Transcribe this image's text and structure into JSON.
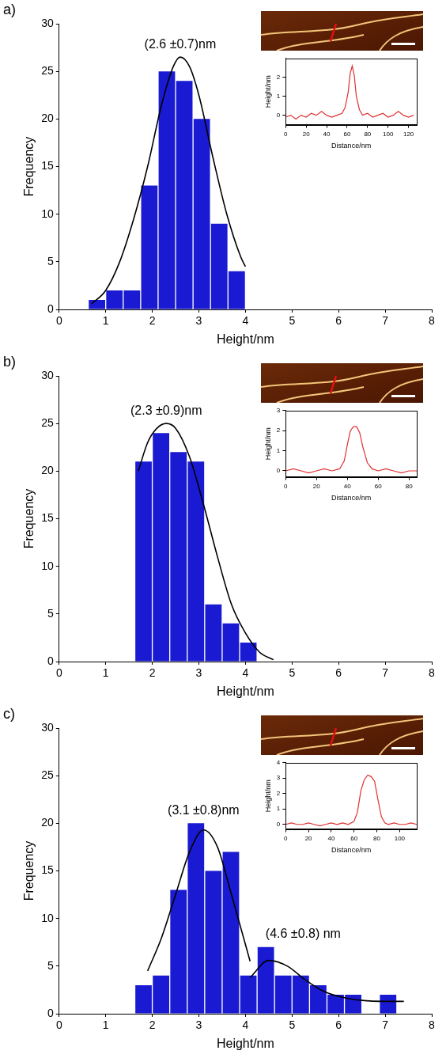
{
  "chart_data": [
    {
      "type": "histogram",
      "title": "a)",
      "xlabel": "Height/nm",
      "ylabel": "Frequency",
      "bins": [
        0.625,
        1.0,
        1.375,
        1.75,
        2.125,
        2.5,
        2.875,
        3.25,
        3.625,
        4.0
      ],
      "values": [
        1,
        2,
        2,
        13,
        25,
        24,
        20,
        9,
        4
      ],
      "color": "#1a1ad2",
      "xlim": [
        0,
        8
      ],
      "xticks": [
        0,
        1,
        2,
        3,
        4,
        5,
        6,
        7,
        8
      ],
      "ylim": [
        0,
        30
      ],
      "yticks": [
        0,
        5,
        10,
        15,
        20,
        25,
        30
      ],
      "grid": false,
      "fits": [
        {
          "label": "(2.6 ±0.7)nm",
          "color": "#000000",
          "x": [
            0.7,
            1.0,
            1.3,
            1.6,
            1.9,
            2.2,
            2.45,
            2.6,
            2.8,
            3.0,
            3.3,
            3.6,
            3.9,
            4.0
          ],
          "values": [
            0.6,
            2,
            5,
            9.5,
            15,
            21.5,
            25.5,
            26.5,
            25.5,
            22.5,
            16,
            10,
            5.5,
            4.5
          ]
        }
      ],
      "inset": {
        "type": "line",
        "xlabel": "Distance/nm",
        "ylabel": "Height/nm",
        "color": "#e03030",
        "x": [
          0,
          5,
          10,
          15,
          20,
          25,
          30,
          35,
          40,
          45,
          50,
          55,
          58,
          61,
          63,
          65,
          67,
          69,
          72,
          75,
          80,
          85,
          90,
          95,
          100,
          105,
          110,
          115,
          120,
          125
        ],
        "values": [
          -0.1,
          0,
          -0.2,
          0,
          -0.1,
          0.1,
          0,
          0.2,
          0,
          -0.1,
          0,
          0.1,
          0.4,
          1.2,
          2.2,
          2.6,
          2.1,
          1.0,
          0.3,
          0,
          0.1,
          -0.1,
          0,
          0.1,
          -0.1,
          0,
          0.2,
          0,
          -0.1,
          0
        ],
        "xlim": [
          0,
          128
        ],
        "xticks": [
          0,
          20,
          40,
          60,
          80,
          100,
          120
        ],
        "ylim": [
          -0.5,
          3
        ],
        "yticks": [
          0,
          1,
          2
        ],
        "grid": false
      }
    },
    {
      "type": "histogram",
      "title": "b)",
      "xlabel": "Height/nm",
      "ylabel": "Frequency",
      "bins": [
        1.625,
        2.0,
        2.375,
        2.75,
        3.125,
        3.5,
        3.875,
        4.25
      ],
      "values": [
        21,
        24,
        22,
        21,
        6,
        4,
        2
      ],
      "color": "#1a1ad2",
      "xlim": [
        0,
        8
      ],
      "xticks": [
        0,
        1,
        2,
        3,
        4,
        5,
        6,
        7,
        8
      ],
      "ylim": [
        0,
        30
      ],
      "yticks": [
        0,
        5,
        10,
        15,
        20,
        25,
        30
      ],
      "grid": false,
      "fits": [
        {
          "label": "(2.3 ±0.9)nm",
          "color": "#000000",
          "x": [
            1.7,
            1.9,
            2.1,
            2.3,
            2.5,
            2.8,
            3.1,
            3.4,
            3.7,
            4.0,
            4.3,
            4.6
          ],
          "values": [
            20,
            23,
            24.5,
            25,
            24.5,
            21.5,
            16.5,
            11,
            6,
            3,
            1,
            0.2
          ]
        }
      ],
      "inset": {
        "type": "line",
        "xlabel": "Distance/nm",
        "ylabel": "Height/nm",
        "color": "#e03030",
        "x": [
          0,
          5,
          10,
          15,
          20,
          25,
          30,
          35,
          38,
          40,
          42,
          44,
          46,
          48,
          50,
          53,
          56,
          60,
          65,
          70,
          75,
          80,
          85
        ],
        "values": [
          0,
          0.1,
          0,
          -0.1,
          0,
          0.1,
          0,
          0.1,
          0.5,
          1.3,
          2.0,
          2.2,
          2.2,
          1.9,
          1.2,
          0.4,
          0.1,
          0,
          0.1,
          0,
          -0.1,
          0,
          0
        ],
        "xlim": [
          0,
          85
        ],
        "xticks": [
          0,
          20,
          40,
          60,
          80
        ],
        "ylim": [
          -0.3,
          3
        ],
        "yticks": [
          0,
          1,
          2,
          3
        ],
        "grid": false
      }
    },
    {
      "type": "histogram",
      "title": "c)",
      "xlabel": "Height/nm",
      "ylabel": "Frequency",
      "bins": [
        1.625,
        2.0,
        2.375,
        2.75,
        3.125,
        3.5,
        3.875,
        4.25,
        4.625,
        5.0,
        5.375,
        5.75,
        6.125,
        6.5,
        6.875,
        7.25
      ],
      "values": [
        3,
        4,
        13,
        20,
        15,
        17,
        4,
        7,
        4,
        4,
        3,
        2,
        2,
        0,
        2
      ],
      "color": "#1a1ad2",
      "xlim": [
        0,
        8
      ],
      "xticks": [
        0,
        1,
        2,
        3,
        4,
        5,
        6,
        7,
        8
      ],
      "ylim": [
        0,
        30
      ],
      "yticks": [
        0,
        5,
        10,
        15,
        20,
        25,
        30
      ],
      "grid": false,
      "fits": [
        {
          "label": "(3.1 ±0.8)nm",
          "color": "#000000",
          "x": [
            1.9,
            2.2,
            2.5,
            2.8,
            3.1,
            3.4,
            3.7,
            4.1
          ],
          "values": [
            4.5,
            8,
            12.5,
            17,
            19.3,
            17.5,
            12.5,
            5.5
          ]
        },
        {
          "label": "(4.6 ±0.8) nm",
          "color": "#000000",
          "x": [
            4.1,
            4.5,
            4.9,
            5.3,
            5.7,
            6.1,
            6.5,
            7.0,
            7.4
          ],
          "values": [
            3.8,
            5.6,
            5,
            3.5,
            2.3,
            1.7,
            1.4,
            1.3,
            1.3
          ]
        }
      ],
      "inset": {
        "type": "line",
        "xlabel": "Distance/nm",
        "ylabel": "Height/nm",
        "color": "#e03030",
        "x": [
          0,
          5,
          10,
          15,
          20,
          25,
          30,
          35,
          40,
          45,
          50,
          55,
          60,
          63,
          66,
          69,
          72,
          75,
          78,
          81,
          84,
          87,
          90,
          95,
          100,
          105,
          110,
          115
        ],
        "values": [
          0,
          0.1,
          0,
          0,
          0.1,
          0,
          -0.1,
          0,
          0.1,
          0,
          0.1,
          0,
          0.2,
          0.8,
          2.2,
          2.9,
          3.2,
          3.1,
          2.8,
          1.6,
          0.5,
          0.1,
          0,
          0.1,
          0,
          0,
          0.1,
          0
        ],
        "xlim": [
          0,
          115
        ],
        "xticks": [
          0,
          20,
          40,
          60,
          80,
          100
        ],
        "ylim": [
          -0.3,
          4
        ],
        "yticks": [
          0,
          1,
          2,
          3,
          4
        ],
        "grid": false
      }
    }
  ]
}
